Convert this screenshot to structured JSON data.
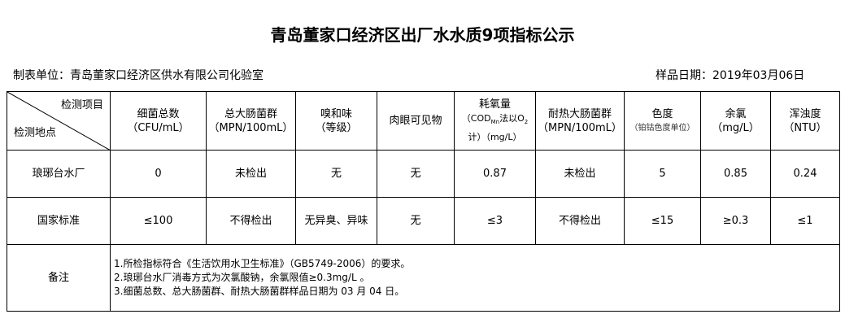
{
  "title": "青岛董家口经济区出厂水水质9项指标公示",
  "unit": "制表单位：青岛董家口经济区供水有限公司化验室",
  "sample_date": "样品日期：2019年03月06日",
  "header": {
    "corner_top": "检测项目",
    "corner_bottom": "检测地点",
    "cols": [
      {
        "name": "细菌总数",
        "unit": "（CFU/mL）"
      },
      {
        "name": "总大肠菌群",
        "unit": "（MPN/100mL）"
      },
      {
        "name": "嗅和味",
        "unit": "（等级）"
      },
      {
        "name": "肉眼可见物",
        "unit": ""
      },
      {
        "name": "耗氧量",
        "unit": "（COD",
        "sub": "Mn",
        "unit2": "法以O",
        "sub2": "2",
        "unit3": "计）（mg/L）"
      },
      {
        "name": "耐热大肠菌群",
        "unit": "（MPN/100mL）"
      },
      {
        "name": "色度",
        "unit": "（铂钴色度单位）"
      },
      {
        "name": "余氯",
        "unit": "（mg/L）"
      },
      {
        "name": "浑浊度",
        "unit": "（NTU）"
      }
    ]
  },
  "rows": [
    {
      "site": "琅琊台水厂",
      "values": [
        "0",
        "未检出",
        "无",
        "无",
        "0.87",
        "未检出",
        "5",
        "0.85",
        "0.24"
      ]
    },
    {
      "site": "国家标准",
      "values": [
        "≤100",
        "不得检出",
        "无异臭、异味",
        "无",
        "≤3",
        "不得检出",
        "≤15",
        "≥0.3",
        "≤1"
      ]
    }
  ],
  "notes_label": "备注",
  "notes": [
    "1.所检指标符合《生活饮用水卫生标准》（GB5749-2006）的要求。",
    "2.琅琊台水厂消毒方式为次氯酸钠，余氯限值≥0.3mg/L 。",
    "3.细菌总数、总大肠菌群、耐热大肠菌群样品日期为 03 月 04 日。"
  ]
}
